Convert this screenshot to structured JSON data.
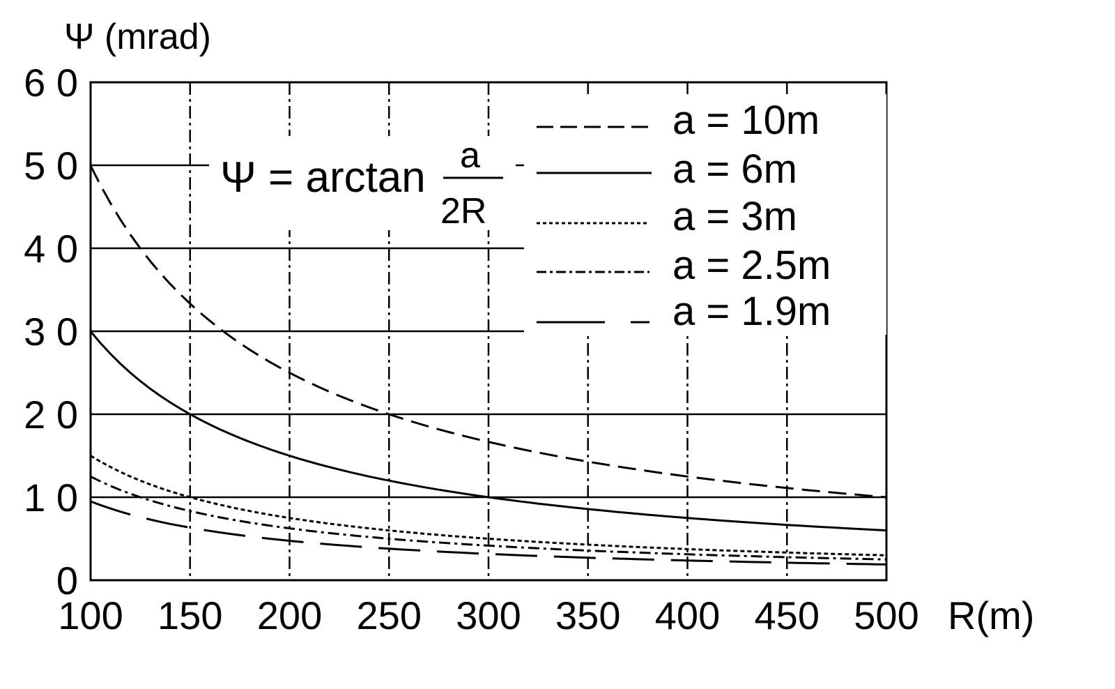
{
  "chart_data": {
    "type": "line",
    "title": "",
    "xlabel": "R(m)",
    "ylabel": "Ψ (mrad)",
    "xlim": [
      100,
      500
    ],
    "ylim": [
      0,
      60
    ],
    "grid": true,
    "legend_position": "upper right",
    "annotation": "Ψ = arctan a/2R",
    "x": [
      100,
      150,
      200,
      250,
      300,
      350,
      400,
      450,
      500
    ],
    "x_ticks": [
      "100",
      "150",
      "200",
      "250",
      "300",
      "350",
      "400",
      "450",
      "500"
    ],
    "y_ticks": [
      "0",
      "10",
      "20",
      "30",
      "40",
      "50",
      "60"
    ],
    "series": [
      {
        "name": "a = 10m",
        "style": "dashed",
        "values": [
          50.0,
          33.3,
          25.0,
          20.0,
          16.7,
          14.3,
          12.5,
          11.1,
          10.0
        ]
      },
      {
        "name": "a = 6m",
        "style": "solid",
        "values": [
          30.0,
          20.0,
          15.0,
          12.0,
          10.0,
          8.6,
          7.5,
          6.7,
          6.0
        ]
      },
      {
        "name": "a = 3m",
        "style": "dotted",
        "values": [
          15.0,
          10.0,
          7.5,
          6.0,
          5.0,
          4.3,
          3.75,
          3.3,
          3.0
        ]
      },
      {
        "name": "a = 2.5m",
        "style": "dash-dot",
        "values": [
          12.5,
          8.3,
          6.25,
          5.0,
          4.2,
          3.6,
          3.1,
          2.8,
          2.5
        ]
      },
      {
        "name": "a = 1.9m",
        "style": "long-dash",
        "values": [
          9.5,
          6.3,
          4.75,
          3.8,
          3.2,
          2.7,
          2.4,
          2.1,
          1.9
        ]
      }
    ]
  },
  "labels": {
    "y_axis": "Ψ (mrad)",
    "x_axis": "R(m)",
    "formula_lhs": "Ψ = arctan",
    "formula_num": "a",
    "formula_den": "2R"
  },
  "legend": [
    {
      "label": "a = 10m"
    },
    {
      "label": "a = 6m"
    },
    {
      "label": "a = 3m"
    },
    {
      "label": "a = 2.5m"
    },
    {
      "label": "a = 1.9m"
    }
  ],
  "ticks": {
    "x": [
      "100",
      "150",
      "200",
      "250",
      "300",
      "350",
      "400",
      "450",
      "500"
    ],
    "y": [
      "0",
      "10",
      "20",
      "30",
      "40",
      "50",
      "60"
    ]
  }
}
